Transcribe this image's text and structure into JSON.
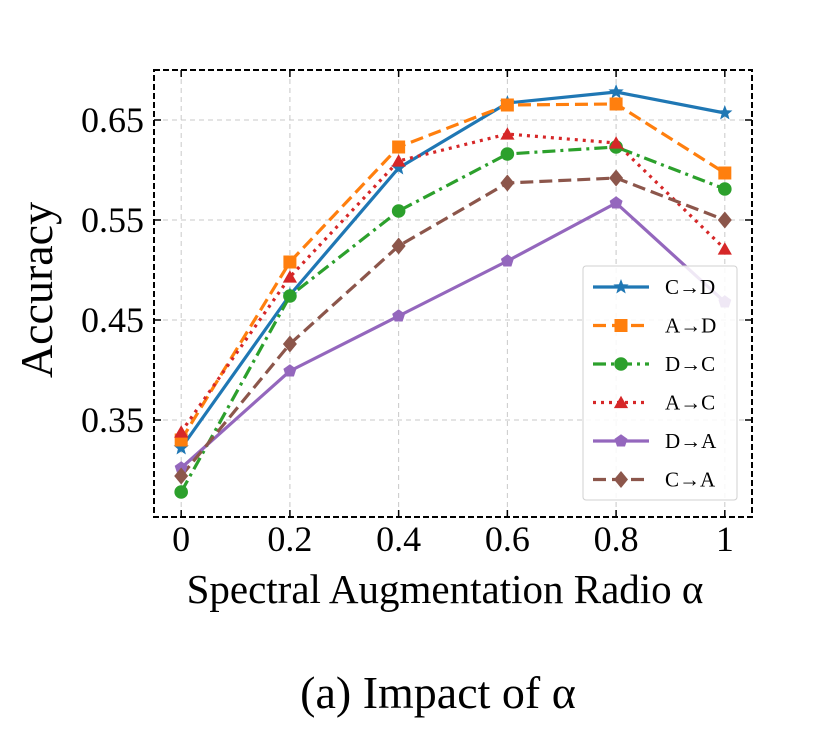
{
  "chart_data": {
    "type": "line",
    "caption": "(a) Impact of α",
    "xlabel": "Spectral Augmentation Radio α",
    "ylabel": "Accuracy",
    "x": [
      0,
      0.2,
      0.4,
      0.6,
      0.8,
      1
    ],
    "x_tick_labels": [
      "0",
      "0.2",
      "0.4",
      "0.6",
      "0.8",
      "1"
    ],
    "y_ticks": [
      0.35,
      0.45,
      0.55,
      0.65
    ],
    "y_tick_labels": [
      "0.35",
      "0.45",
      "0.55",
      "0.65"
    ],
    "xlim": [
      -0.05,
      1.05
    ],
    "ylim": [
      0.253,
      0.7
    ],
    "grid": true,
    "legend_position": "lower-right",
    "series": [
      {
        "name": "C→D",
        "color": "#1f77b4",
        "dash": "solid",
        "marker": "star",
        "values": [
          0.322,
          0.475,
          0.602,
          0.667,
          0.678,
          0.657
        ]
      },
      {
        "name": "A→D",
        "color": "#ff7f0e",
        "dash": "dashed",
        "marker": "square",
        "values": [
          0.33,
          0.508,
          0.623,
          0.665,
          0.666,
          0.597
        ]
      },
      {
        "name": "D→C",
        "color": "#2ca02c",
        "dash": "dashdot",
        "marker": "circle",
        "values": [
          0.278,
          0.474,
          0.559,
          0.616,
          0.623,
          0.581
        ]
      },
      {
        "name": "A→C",
        "color": "#d62728",
        "dash": "dotted",
        "marker": "triangle",
        "values": [
          0.338,
          0.493,
          0.609,
          0.636,
          0.627,
          0.521
        ]
      },
      {
        "name": "D→A",
        "color": "#9467bd",
        "dash": "solid",
        "marker": "pentagon",
        "values": [
          0.302,
          0.399,
          0.454,
          0.509,
          0.567,
          0.468
        ]
      },
      {
        "name": "C→A",
        "color": "#8c564b",
        "dash": "dashed",
        "marker": "diamond",
        "values": [
          0.294,
          0.426,
          0.524,
          0.587,
          0.592,
          0.55
        ]
      }
    ]
  }
}
